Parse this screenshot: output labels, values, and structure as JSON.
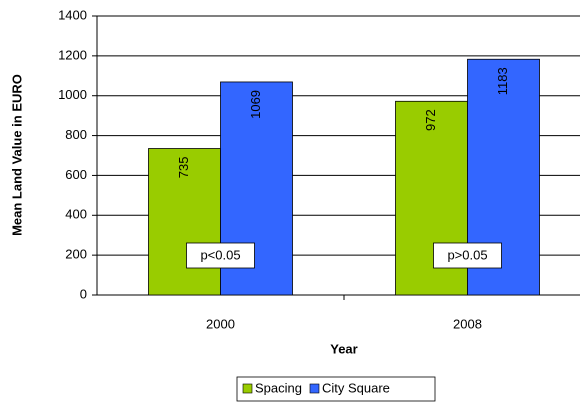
{
  "chart_data": {
    "type": "bar",
    "x_label": "Year",
    "y_label": "Mean Land Value in EURO",
    "categories": [
      "2000",
      "2008"
    ],
    "series": [
      {
        "name": "Spacing",
        "color": "#99cc00",
        "values": [
          735,
          972
        ]
      },
      {
        "name": "City Square",
        "color": "#3366ff",
        "values": [
          1069,
          1183
        ]
      }
    ],
    "annotations": [
      "p<0.05",
      "p>0.05"
    ],
    "ylim": [
      0,
      1400
    ],
    "yticks": [
      0,
      200,
      400,
      600,
      800,
      1000,
      1200,
      1400
    ],
    "grid": true,
    "legend": "bottom"
  }
}
